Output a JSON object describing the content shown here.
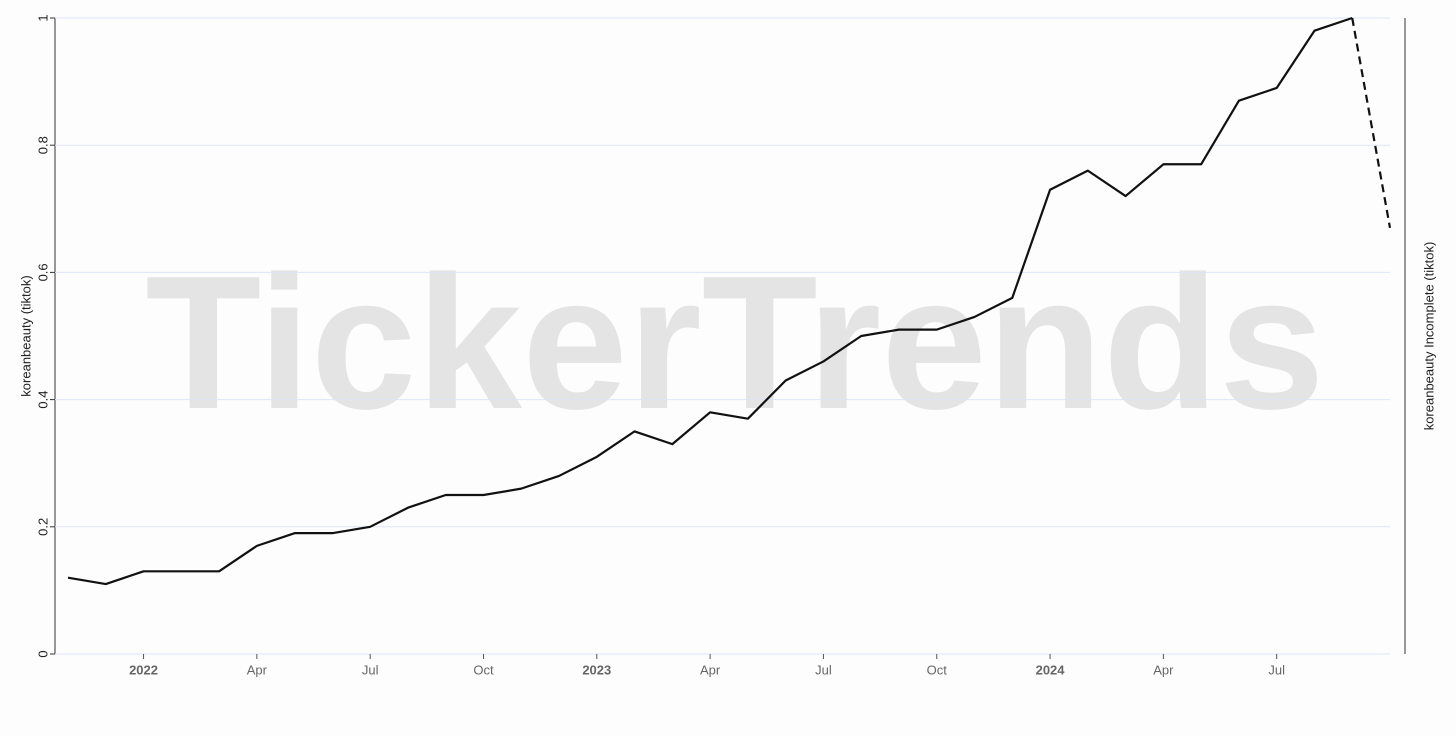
{
  "chart_data": {
    "type": "line",
    "watermark": "TickerTrends",
    "y_label": "koreanbeauty  (tiktok)",
    "y2_label": "koreanbeauty Incomplete  (tiktok)",
    "x": [
      "2021-11",
      "2021-12",
      "2022-01",
      "2022-02",
      "2022-03",
      "2022-04",
      "2022-05",
      "2022-06",
      "2022-07",
      "2022-08",
      "2022-09",
      "2022-10",
      "2022-11",
      "2022-12",
      "2023-01",
      "2023-02",
      "2023-03",
      "2023-04",
      "2023-05",
      "2023-06",
      "2023-07",
      "2023-08",
      "2023-09",
      "2023-10",
      "2023-11",
      "2023-12",
      "2024-01",
      "2024-02",
      "2024-03",
      "2024-04",
      "2024-05",
      "2024-06",
      "2024-07",
      "2024-08",
      "2024-09",
      "2024-10"
    ],
    "series": [
      {
        "name": "koreanbeauty  (tiktok)",
        "color": "#111111",
        "dash": false,
        "values": [
          0.12,
          0.11,
          0.13,
          0.13,
          0.13,
          0.17,
          0.19,
          0.19,
          0.2,
          0.23,
          0.25,
          0.25,
          0.26,
          0.28,
          0.31,
          0.35,
          0.33,
          0.38,
          0.37,
          0.43,
          0.46,
          0.5,
          0.51,
          0.51,
          0.53,
          0.56,
          0.73,
          0.76,
          0.72,
          0.77,
          0.77,
          0.87,
          0.89,
          0.98,
          1.0,
          null
        ]
      },
      {
        "name": "koreanbeauty Incomplete  (tiktok)",
        "color": "#111111",
        "dash": true,
        "axis": "y2",
        "values": [
          null,
          null,
          null,
          null,
          null,
          null,
          null,
          null,
          null,
          null,
          null,
          null,
          null,
          null,
          null,
          null,
          null,
          null,
          null,
          null,
          null,
          null,
          null,
          null,
          null,
          null,
          null,
          null,
          null,
          null,
          null,
          null,
          null,
          null,
          1.0,
          0.67
        ]
      }
    ],
    "xlim": [
      "2021-11",
      "2024-10"
    ],
    "xticks": [
      {
        "value": "2022-01",
        "label": "2022"
      },
      {
        "value": "2022-04",
        "label": "Apr"
      },
      {
        "value": "2022-07",
        "label": "Jul"
      },
      {
        "value": "2022-10",
        "label": "Oct"
      },
      {
        "value": "2023-01",
        "label": "2023"
      },
      {
        "value": "2023-04",
        "label": "Apr"
      },
      {
        "value": "2023-07",
        "label": "Jul"
      },
      {
        "value": "2023-10",
        "label": "Oct"
      },
      {
        "value": "2024-01",
        "label": "2024"
      },
      {
        "value": "2024-04",
        "label": "Apr"
      },
      {
        "value": "2024-07",
        "label": "Jul"
      }
    ],
    "ylim": [
      0,
      1
    ],
    "yticks": [
      0,
      0.2,
      0.4,
      0.6,
      0.8,
      1
    ],
    "y2lim": [
      0,
      1
    ],
    "grid": true
  }
}
